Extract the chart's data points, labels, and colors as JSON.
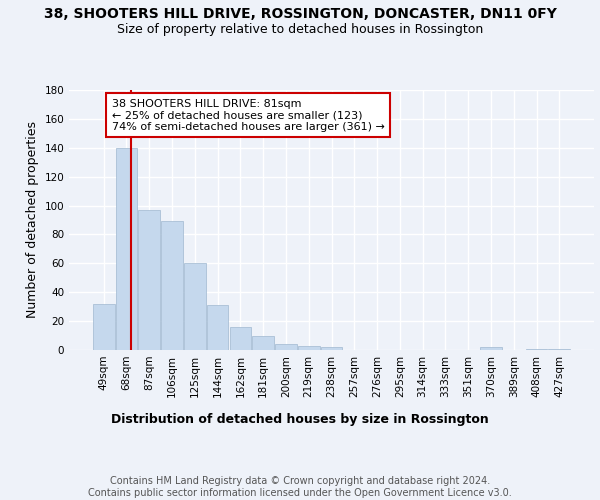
{
  "title": "38, SHOOTERS HILL DRIVE, ROSSINGTON, DONCASTER, DN11 0FY",
  "subtitle": "Size of property relative to detached houses in Rossington",
  "xlabel": "Distribution of detached houses by size in Rossington",
  "ylabel": "Number of detached properties",
  "categories": [
    "49sqm",
    "68sqm",
    "87sqm",
    "106sqm",
    "125sqm",
    "144sqm",
    "162sqm",
    "181sqm",
    "200sqm",
    "219sqm",
    "238sqm",
    "257sqm",
    "276sqm",
    "295sqm",
    "314sqm",
    "333sqm",
    "351sqm",
    "370sqm",
    "389sqm",
    "408sqm",
    "427sqm"
  ],
  "values": [
    32,
    140,
    97,
    89,
    60,
    31,
    16,
    10,
    4,
    3,
    2,
    0,
    0,
    0,
    0,
    0,
    0,
    2,
    0,
    1,
    1
  ],
  "bar_color": "#c5d8ed",
  "bar_edge_color": "#a0b8d0",
  "highlight_line_color": "#cc0000",
  "annotation_text": "38 SHOOTERS HILL DRIVE: 81sqm\n← 25% of detached houses are smaller (123)\n74% of semi-detached houses are larger (361) →",
  "annotation_box_color": "#cc0000",
  "ylim": [
    0,
    180
  ],
  "yticks": [
    0,
    20,
    40,
    60,
    80,
    100,
    120,
    140,
    160,
    180
  ],
  "footer": "Contains HM Land Registry data © Crown copyright and database right 2024.\nContains public sector information licensed under the Open Government Licence v3.0.",
  "background_color": "#eef2f9",
  "title_fontsize": 10,
  "subtitle_fontsize": 9,
  "axis_label_fontsize": 9,
  "tick_fontsize": 7.5,
  "annotation_fontsize": 8,
  "footer_fontsize": 7
}
